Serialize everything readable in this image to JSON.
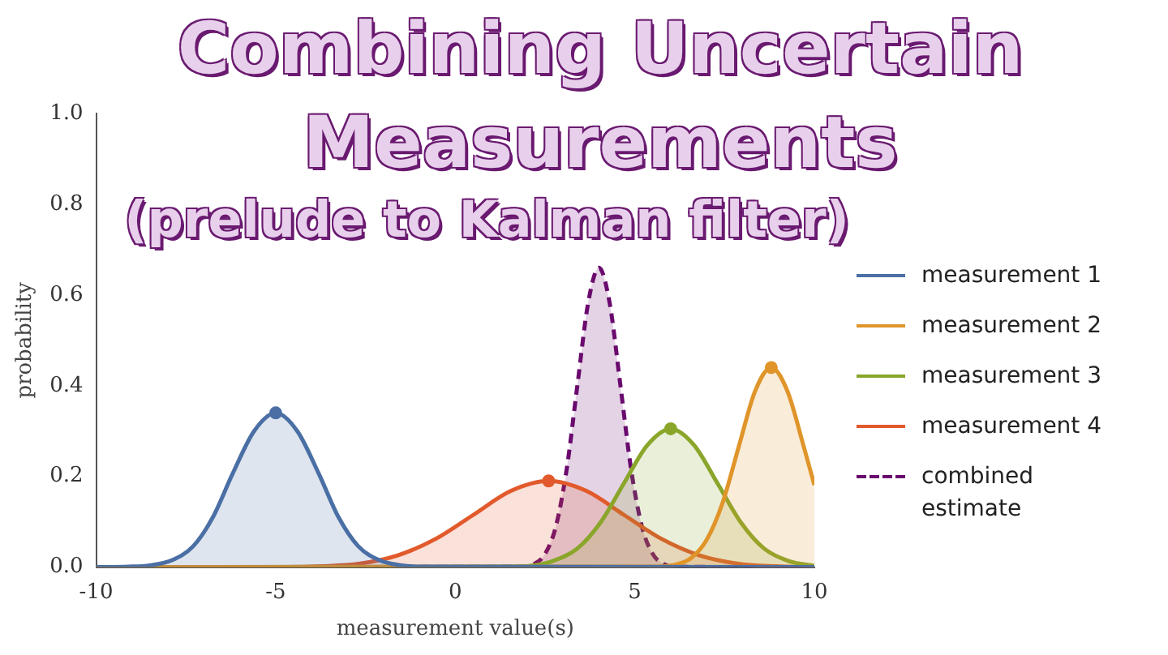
{
  "chart_data": {
    "type": "area",
    "title": "Combining Uncertain Measurements",
    "subtitle": "(prelude to Kalman filter)",
    "xlabel": "measurement value(s)",
    "ylabel": "probability",
    "xlim": [
      -10,
      10
    ],
    "xticks": [
      -10,
      -5,
      0,
      5,
      10
    ],
    "ylim": [
      0,
      1
    ],
    "yticks": [
      {
        "value": 0,
        "label": "0.0"
      },
      {
        "value": 0.2,
        "label": "0.2"
      },
      {
        "value": 0.4,
        "label": "0.4"
      },
      {
        "value": 0.6,
        "label": "0.6"
      },
      {
        "value": 0.8,
        "label": "0.8"
      },
      {
        "value": 1,
        "label": "1.0"
      }
    ],
    "grid": false,
    "legend": "right",
    "marker": "none",
    "series": [
      {
        "name": "measurement 1",
        "color": "#4a6fa5",
        "x": [
          -10,
          -9.1,
          -8.5,
          -7.9,
          -7.3,
          -6.75,
          -6.2,
          -5.6,
          -5,
          -4.4,
          -3.8,
          -3.25,
          -2.7,
          -2.1,
          -1.5,
          -0.9,
          10
        ],
        "values": [
          0,
          0.001,
          0.004,
          0.015,
          0.046,
          0.11,
          0.206,
          0.3,
          0.34,
          0.3,
          0.206,
          0.11,
          0.046,
          0.015,
          0.004,
          0.001,
          0
        ]
      },
      {
        "name": "measurement 2",
        "color": "#e0952a",
        "x": [
          -10,
          5.65,
          6.1,
          6.55,
          7,
          7.45,
          7.9,
          8.35,
          8.8,
          9.25,
          9.7,
          10
        ],
        "values": [
          0,
          0.001,
          0.005,
          0.019,
          0.06,
          0.143,
          0.267,
          0.388,
          0.44,
          0.388,
          0.267,
          0.181
        ]
      },
      {
        "name": "measurement 3",
        "color": "#8aa62a",
        "x": [
          -10,
          1.4,
          2.1,
          2.7,
          3.4,
          4.05,
          4.7,
          5.35,
          6,
          6.65,
          7.3,
          7.95,
          8.6,
          9.3,
          10
        ],
        "values": [
          0,
          0.001,
          0.003,
          0.013,
          0.041,
          0.099,
          0.185,
          0.269,
          0.305,
          0.269,
          0.185,
          0.099,
          0.041,
          0.013,
          0.003
        ]
      },
      {
        "name": "measurement 4",
        "color": "#e25a2c",
        "x": [
          -10,
          -4.75,
          -3.7,
          -2.65,
          -1.6,
          -0.55,
          0.5,
          1.55,
          2.6,
          3.65,
          4.7,
          5.75,
          6.8,
          7.85,
          8.9,
          10
        ],
        "values": [
          0,
          0,
          0.002,
          0.008,
          0.026,
          0.062,
          0.115,
          0.168,
          0.19,
          0.168,
          0.115,
          0.062,
          0.026,
          0.008,
          0.002,
          0
        ]
      },
      {
        "name": "combined estimate",
        "color": "#6a0a6e",
        "line_style": "dashed",
        "x": [
          -10,
          1.9,
          2.2,
          2.5,
          2.8,
          3.1,
          3.4,
          3.7,
          4,
          4.3,
          4.6,
          4.9,
          5.2,
          5.5,
          5.8,
          6.1,
          10
        ],
        "values": [
          0,
          0.001,
          0.007,
          0.029,
          0.089,
          0.214,
          0.4,
          0.582,
          0.66,
          0.582,
          0.4,
          0.214,
          0.089,
          0.029,
          0.007,
          0.001,
          0
        ]
      },
      {
        "type": "scatter",
        "marker": "circle",
        "color": "#4a6fa5",
        "x": [
          -5
        ],
        "values": [
          0.34
        ]
      },
      {
        "type": "scatter",
        "marker": "circle",
        "color": "#e0952a",
        "x": [
          8.8
        ],
        "values": [
          0.44
        ]
      },
      {
        "type": "scatter",
        "marker": "circle",
        "color": "#8aa62a",
        "x": [
          6
        ],
        "values": [
          0.305
        ]
      },
      {
        "type": "scatter",
        "marker": "circle",
        "color": "#e25a2c",
        "x": [
          2.6
        ],
        "values": [
          0.19
        ]
      }
    ]
  }
}
